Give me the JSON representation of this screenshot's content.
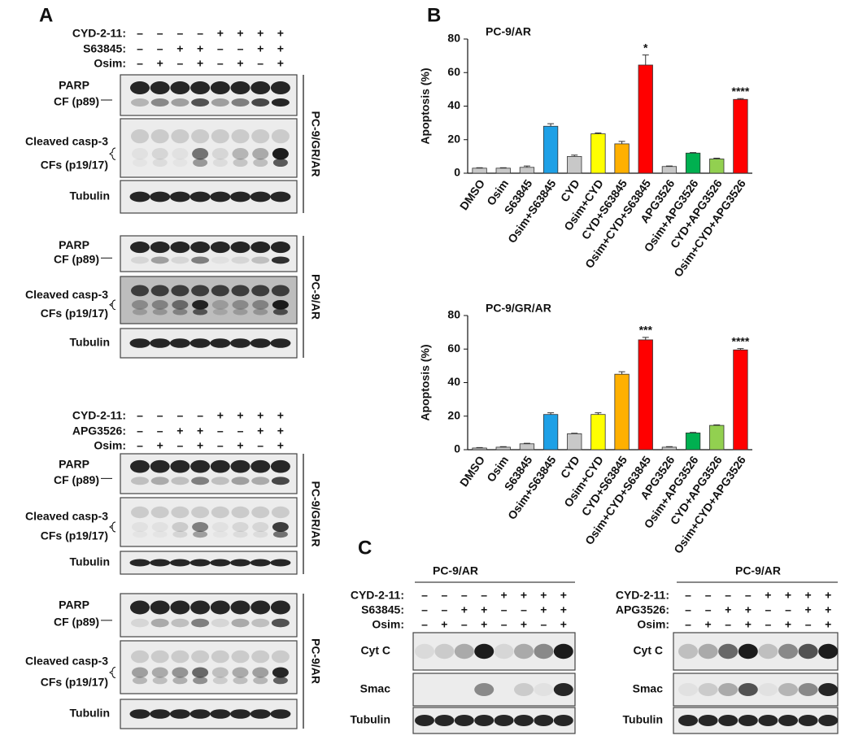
{
  "panel_labels": [
    "A",
    "B",
    "C"
  ],
  "panel_a": {
    "blot_sets": [
      {
        "treatments": [
          {
            "label": "CYD-2-11:",
            "signs": [
              "–",
              "–",
              "–",
              "–",
              "+",
              "+",
              "+",
              "+"
            ]
          },
          {
            "label": "S63845:",
            "signs": [
              "–",
              "–",
              "+",
              "+",
              "–",
              "–",
              "+",
              "+"
            ]
          },
          {
            "label": "Osim:",
            "signs": [
              "–",
              "+",
              "–",
              "+",
              "–",
              "+",
              "–",
              "+"
            ]
          }
        ],
        "blots": [
          {
            "cell_line": "PC-9/GR/AR",
            "labels": [
              "PARP",
              "CF (p89)",
              "Cleaved casp-3",
              "CFs (p19/17)",
              "Tubulin"
            ]
          },
          {
            "cell_line": "PC-9/AR",
            "labels": [
              "PARP",
              "CF (p89)",
              "Cleaved casp-3",
              "CFs (p19/17)",
              "Tubulin"
            ]
          }
        ]
      },
      {
        "treatments": [
          {
            "label": "CYD-2-11:",
            "signs": [
              "–",
              "–",
              "–",
              "–",
              "+",
              "+",
              "+",
              "+"
            ]
          },
          {
            "label": "APG3526:",
            "signs": [
              "–",
              "–",
              "+",
              "+",
              "–",
              "–",
              "+",
              "+"
            ]
          },
          {
            "label": "Osim:",
            "signs": [
              "–",
              "+",
              "–",
              "+",
              "–",
              "+",
              "–",
              "+"
            ]
          }
        ],
        "blots": [
          {
            "cell_line": "PC-9/GR/AR",
            "labels": [
              "PARP",
              "CF (p89)",
              "Cleaved casp-3",
              "CFs (p19/17)",
              "Tubulin"
            ]
          },
          {
            "cell_line": "PC-9/AR",
            "labels": [
              "PARP",
              "CF (p89)",
              "Cleaved casp-3",
              "CFs (p19/17)",
              "Tubulin"
            ]
          }
        ]
      }
    ]
  },
  "chart_data": [
    {
      "type": "bar",
      "title": "PC-9/AR",
      "ylabel": "Apoptosis (%)",
      "categories": [
        "DMSO",
        "Osim",
        "S63845",
        "Osim+S63845",
        "CYD",
        "Osim+CYD",
        "CYD+S63845",
        "Osim+CYD+S63845",
        "APG3526",
        "Osim+APG3526",
        "CYD+APG3526",
        "Osim+CYD+APG3526"
      ],
      "values": [
        3,
        3,
        3.5,
        28,
        10,
        23.5,
        17.5,
        64.5,
        4,
        12,
        8.5,
        44
      ],
      "errors": [
        0.3,
        0.3,
        0.8,
        1.5,
        0.8,
        0.5,
        1.5,
        6,
        0.3,
        0.3,
        0.5,
        0.5
      ],
      "significance": [
        null,
        null,
        null,
        null,
        null,
        null,
        null,
        "*",
        null,
        null,
        null,
        "****"
      ],
      "colors": [
        "#c8c8c8",
        "#c8c8c8",
        "#c8c8c8",
        "#1ea0e6",
        "#c8c8c8",
        "#ffff00",
        "#ffb000",
        "#ff0000",
        "#c8c8c8",
        "#00b050",
        "#92d050",
        "#ff0000"
      ],
      "ylim": [
        0,
        80
      ],
      "yticks": [
        0,
        20,
        40,
        60,
        80
      ],
      "grid": false
    },
    {
      "type": "bar",
      "title": "PC-9/GR/AR",
      "ylabel": "Apoptosis (%)",
      "categories": [
        "DMSO",
        "Osim",
        "S63845",
        "Osim+S63845",
        "CYD",
        "Osim+CYD",
        "CYD+S63845",
        "Osim+CYD+S63845",
        "APG3526",
        "Osim+APG3526",
        "CYD+APG3526",
        "Osim+CYD+APG3526"
      ],
      "values": [
        1,
        1.5,
        3.5,
        21,
        9.5,
        21,
        45,
        65.5,
        1.5,
        10,
        14.5,
        59.5
      ],
      "errors": [
        0.3,
        0.3,
        0.3,
        1,
        0.3,
        1,
        1.5,
        1.5,
        0.3,
        0.3,
        0.3,
        0.8
      ],
      "significance": [
        null,
        null,
        null,
        null,
        null,
        null,
        null,
        "***",
        null,
        null,
        null,
        "****"
      ],
      "colors": [
        "#c8c8c8",
        "#c8c8c8",
        "#c8c8c8",
        "#1ea0e6",
        "#c8c8c8",
        "#ffff00",
        "#ffb000",
        "#ff0000",
        "#c8c8c8",
        "#00b050",
        "#92d050",
        "#ff0000"
      ],
      "ylim": [
        0,
        80
      ],
      "yticks": [
        0,
        20,
        40,
        60,
        80
      ],
      "grid": false
    }
  ],
  "panel_c": {
    "blots": [
      {
        "title": "PC-9/AR",
        "treatments": [
          {
            "label": "CYD-2-11:",
            "signs": [
              "–",
              "–",
              "–",
              "–",
              "+",
              "+",
              "+",
              "+"
            ]
          },
          {
            "label": "S63845:",
            "signs": [
              "–",
              "–",
              "+",
              "+",
              "–",
              "–",
              "+",
              "+"
            ]
          },
          {
            "label": "Osim:",
            "signs": [
              "–",
              "+",
              "–",
              "+",
              "–",
              "+",
              "–",
              "+"
            ]
          }
        ],
        "labels": [
          "Cyt C",
          "Smac",
          "Tubulin"
        ]
      },
      {
        "title": "PC-9/AR",
        "treatments": [
          {
            "label": "CYD-2-11:",
            "signs": [
              "–",
              "–",
              "–",
              "–",
              "+",
              "+",
              "+",
              "+"
            ]
          },
          {
            "label": "APG3526:",
            "signs": [
              "–",
              "–",
              "+",
              "+",
              "–",
              "–",
              "+",
              "+"
            ]
          },
          {
            "label": "Osim:",
            "signs": [
              "–",
              "+",
              "–",
              "+",
              "–",
              "+",
              "–",
              "+"
            ]
          }
        ],
        "labels": [
          "Cyt C",
          "Smac",
          "Tubulin"
        ]
      }
    ]
  }
}
